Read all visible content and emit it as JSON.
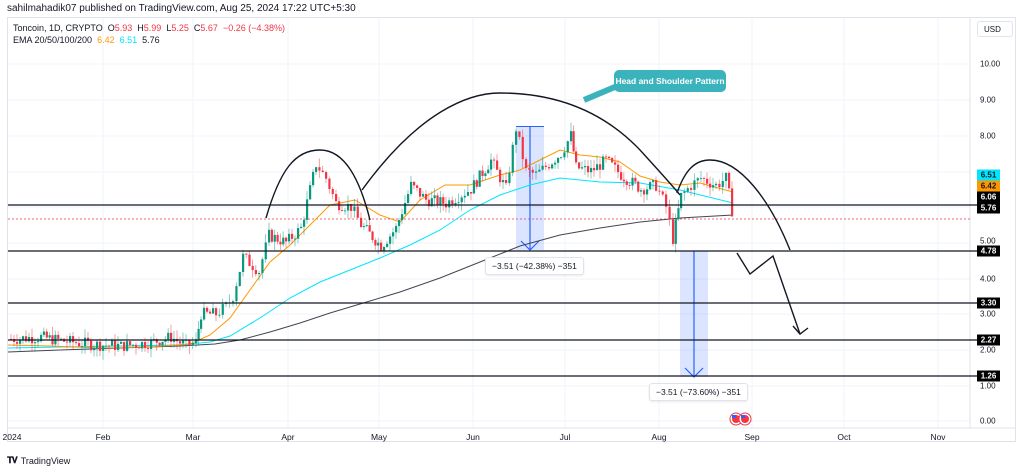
{
  "header": {
    "published": "sahilmahadik07 published on TradingView.com, Aug 25, 2024 17:22 UTC+5:30"
  },
  "legend": {
    "symbol": "Toncoin, 1D, CRYPTO",
    "open_label": "O",
    "open": "5.93",
    "high_label": "H",
    "high": "5.99",
    "low_label": "L",
    "low": "5.25",
    "close_label": "C",
    "close": "5.67",
    "change": "−0.26 (−4.38%)",
    "ema_label": "EMA 20/50/100/200",
    "ema_20": "6.42",
    "ema_50": "6.51",
    "ema_100": "5.76"
  },
  "price_scale": {
    "currency": "USD",
    "ticks": [
      "10.00",
      "9.00",
      "8.00",
      "5.00",
      "4.00",
      "3.00",
      "2.00",
      "1.00",
      "0.00"
    ],
    "badges": [
      {
        "label": "6.51",
        "bg": "#00e5ff",
        "fg": "#131722"
      },
      {
        "label": "6.42",
        "bg": "#ff9800",
        "fg": "#131722"
      },
      {
        "label": "6.06",
        "bg": "#000000",
        "fg": "#ffffff"
      },
      {
        "label": "5.76",
        "bg": "#000000",
        "fg": "#ffffff"
      },
      {
        "label": "4.78",
        "bg": "#000000",
        "fg": "#ffffff"
      },
      {
        "label": "3.30",
        "bg": "#000000",
        "fg": "#ffffff"
      },
      {
        "label": "2.27",
        "bg": "#000000",
        "fg": "#ffffff"
      },
      {
        "label": "1.26",
        "bg": "#000000",
        "fg": "#ffffff"
      }
    ]
  },
  "time_scale": {
    "ticks": [
      "2024",
      "Feb",
      "Mar",
      "Apr",
      "May",
      "Jun",
      "Jul",
      "Aug",
      "Sep",
      "Oct",
      "Nov"
    ]
  },
  "annotations": {
    "pattern_label": "Head and Shoulder Pattern",
    "measure_1": "−3.51 (−42.38%) −351",
    "measure_2": "−3.51 (−73.60%) −351"
  },
  "footer": {
    "brand": "TradingView"
  },
  "colors": {
    "up": "#089981",
    "down": "#f23645",
    "ema20": "#ff9800",
    "ema50": "#00e5ff",
    "ema100": "#434651",
    "measure": "#2962ff",
    "callout": "#3bb3bd"
  },
  "chart_data": {
    "type": "candlestick",
    "title": "Toncoin, 1D, CRYPTO",
    "xlabel": "",
    "ylabel": "USD",
    "ylim": [
      -0.1,
      10.8
    ],
    "x_ticks": [
      "2024",
      "Feb",
      "Mar",
      "Apr",
      "May",
      "Jun",
      "Jul",
      "Aug",
      "Sep",
      "Oct",
      "Nov"
    ],
    "y_ticks": [
      0,
      1,
      2,
      3,
      4,
      5,
      8,
      9,
      10
    ],
    "ohlc_last": {
      "open": 5.93,
      "high": 5.99,
      "low": 5.25,
      "close": 5.67,
      "change": -0.26,
      "change_pct": -4.38
    },
    "horizontal_levels": [
      6.06,
      4.78,
      3.3,
      2.27,
      1.26
    ],
    "series": [
      {
        "name": "Close (approx)",
        "x": [
          "Jan 1",
          "Jan 15",
          "Feb 1",
          "Feb 15",
          "Mar 1",
          "Mar 8",
          "Mar 15",
          "Mar 22",
          "Apr 1",
          "Apr 10",
          "Apr 20",
          "May 1",
          "May 15",
          "Jun 1",
          "Jun 15",
          "Jun 20",
          "Jul 1",
          "Jul 15",
          "Aug 1",
          "Aug 5",
          "Aug 15",
          "Aug 25"
        ],
        "values": [
          2.3,
          2.25,
          2.1,
          2.15,
          2.3,
          3.0,
          3.4,
          5.1,
          5.5,
          7.0,
          6.0,
          4.9,
          6.4,
          6.6,
          8.1,
          6.9,
          7.8,
          7.0,
          6.5,
          5.1,
          6.6,
          5.67
        ]
      },
      {
        "name": "EMA 20",
        "last": 6.42
      },
      {
        "name": "EMA 50",
        "last": 6.51
      },
      {
        "name": "EMA 100/200",
        "last": 5.76
      }
    ],
    "annotations": [
      {
        "type": "pattern",
        "text": "Head and Shoulder Pattern",
        "neckline": 4.78
      },
      {
        "type": "measure",
        "text": "-3.51 (-42.38%) -351",
        "from": 8.29,
        "to": 4.78
      },
      {
        "type": "measure",
        "text": "-3.51 (-73.60%) -351",
        "from": 4.78,
        "to": 1.26
      },
      {
        "type": "projection",
        "description": "Projected breakdown path below neckline toward 2.27"
      }
    ],
    "grid": true,
    "legend_position": "top-left"
  }
}
